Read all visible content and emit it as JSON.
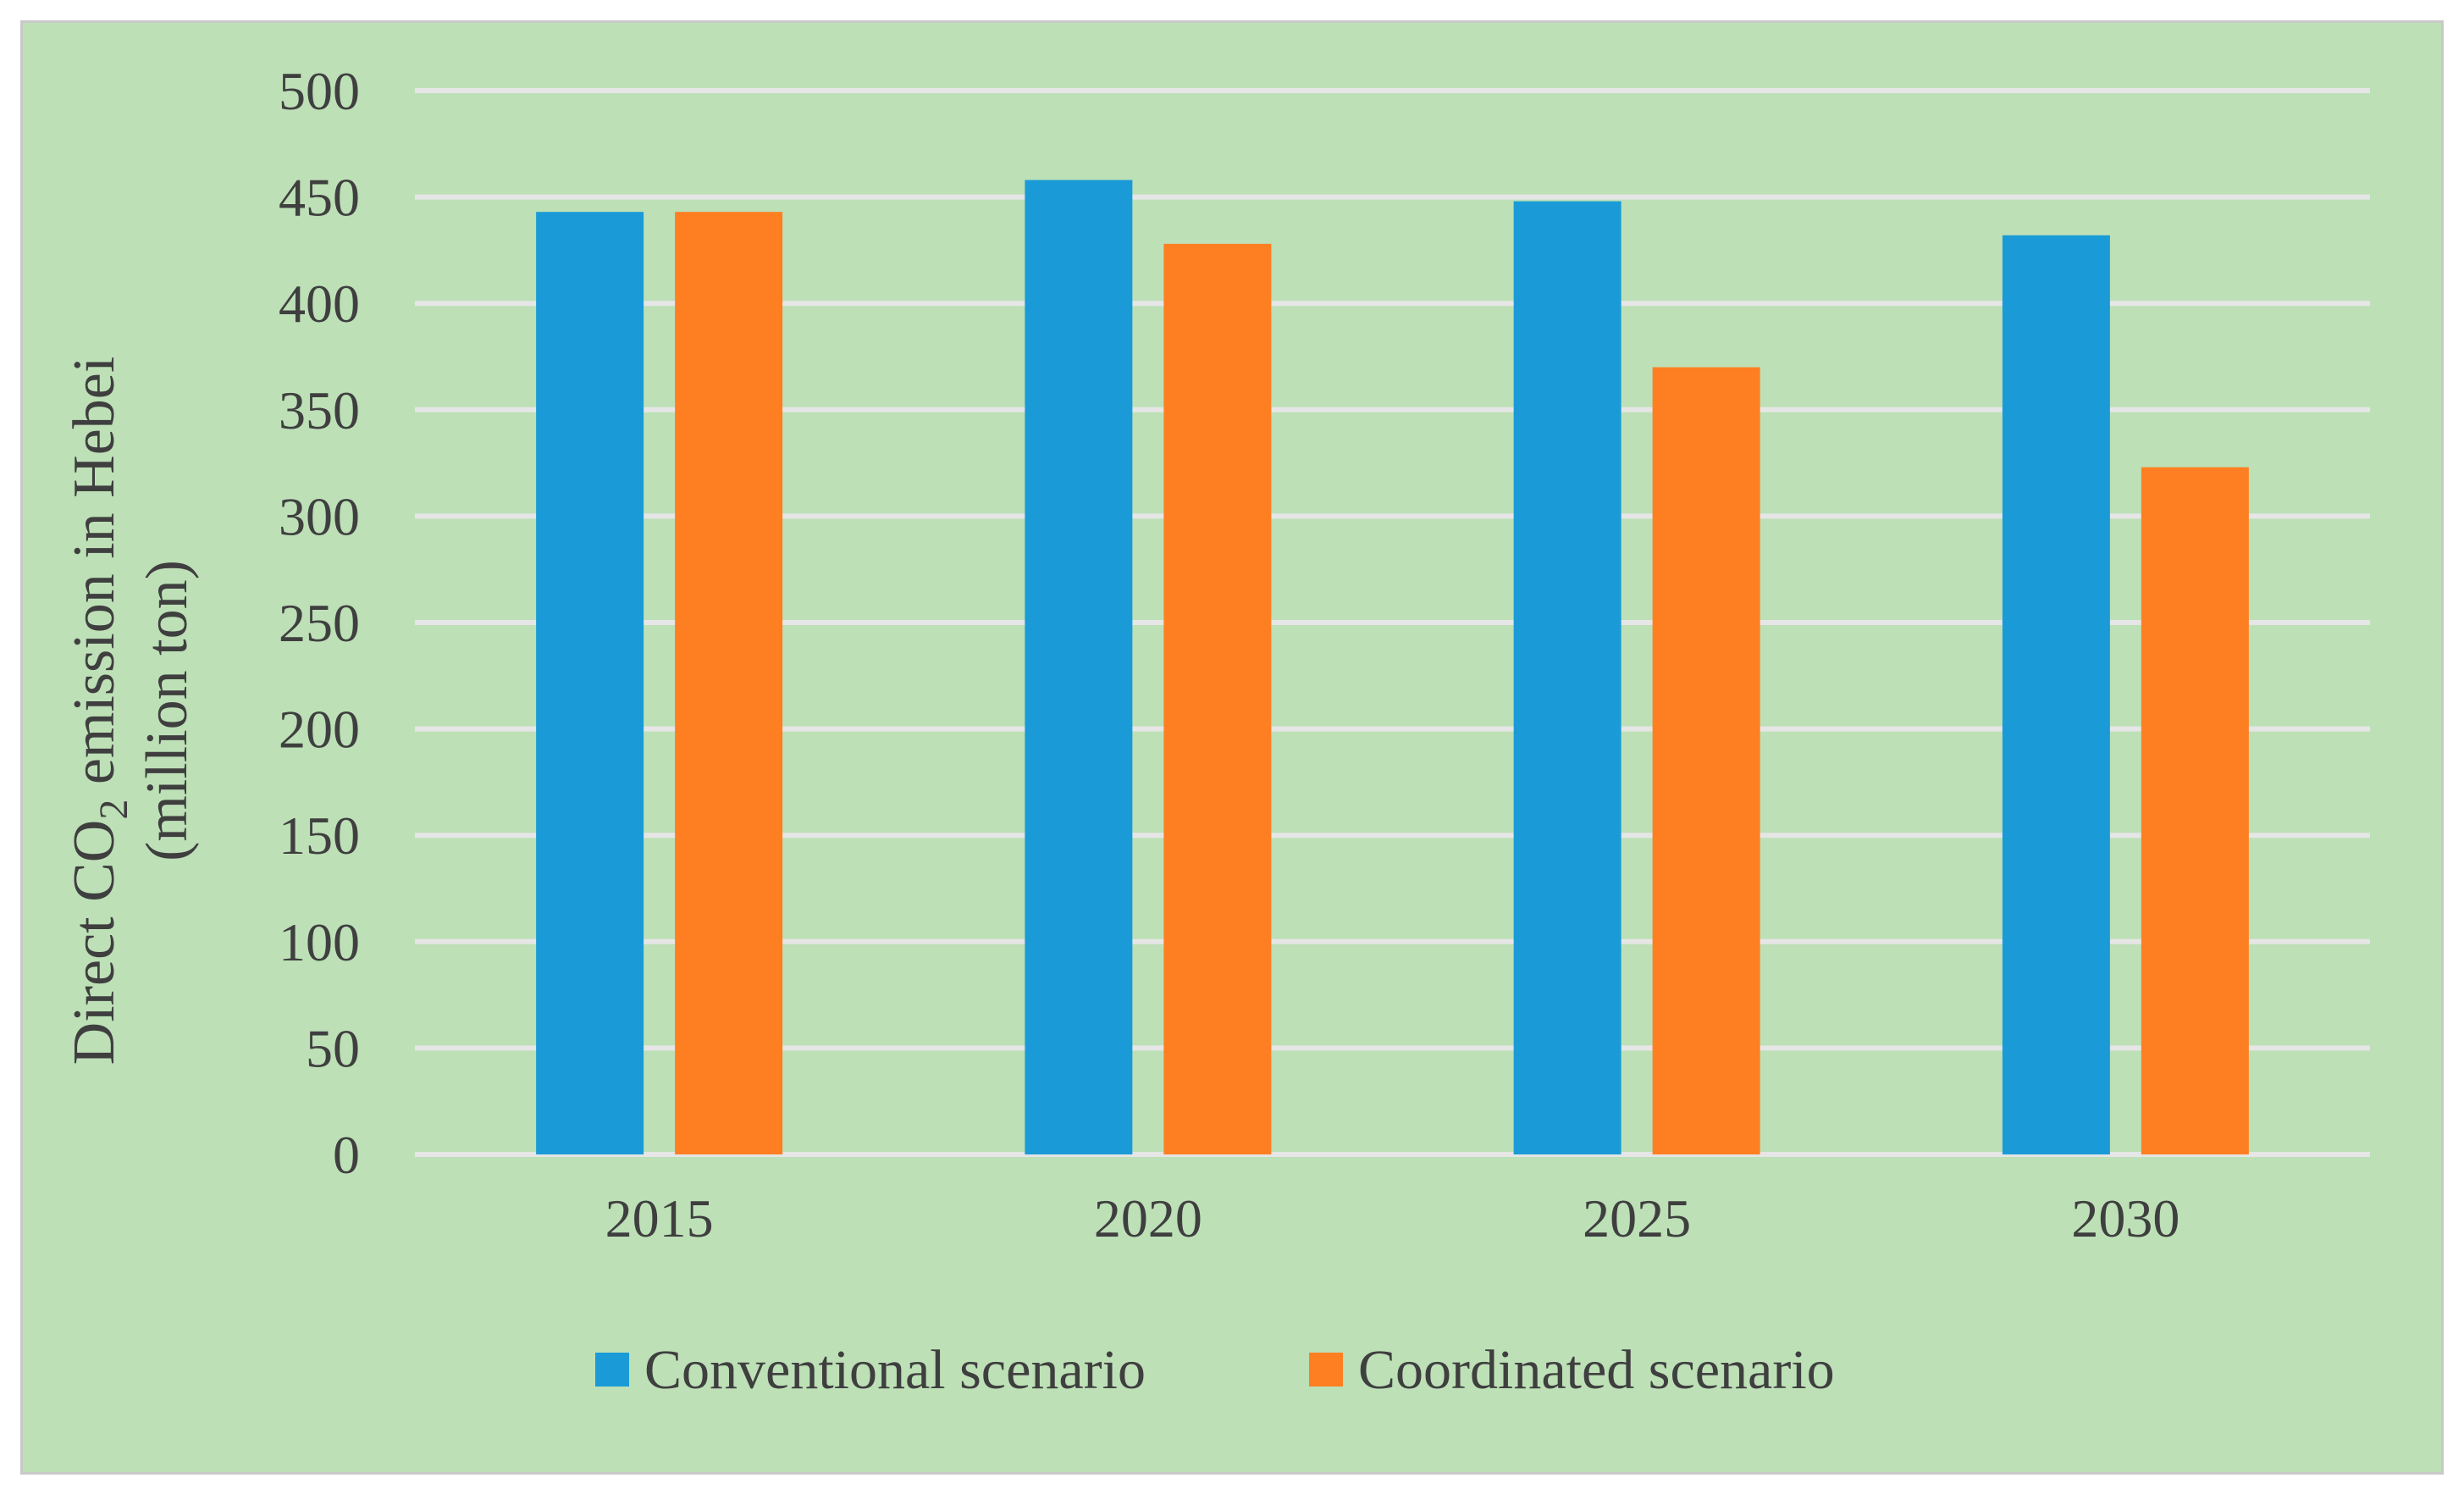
{
  "chart_data": {
    "type": "bar",
    "title": "",
    "categories": [
      "2015",
      "2020",
      "2025",
      "2030"
    ],
    "series": [
      {
        "name": "Conventional scenario",
        "color": "#1a9bd7",
        "values": [
          443,
          458,
          448,
          432
        ]
      },
      {
        "name": "Coordinated scenario",
        "color": "#fd7f22",
        "values": [
          443,
          428,
          370,
          323
        ]
      }
    ],
    "ylim": [
      0,
      500
    ],
    "yticks": [
      "0",
      "50",
      "100",
      "150",
      "200",
      "250",
      "300",
      "350",
      "400",
      "450",
      "500"
    ],
    "ylabel": {
      "line1_prefix": "Direct CO",
      "line1_subscript": "2",
      "line1_suffix": " emission in Hebei",
      "line2": "(million ton)"
    },
    "xlabel": "",
    "grid": true,
    "legend_position": "bottom-center"
  }
}
